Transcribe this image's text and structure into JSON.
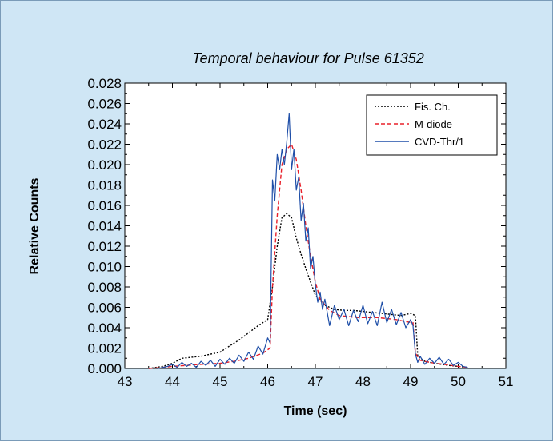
{
  "chart_data": {
    "type": "line",
    "title": "Temporal behaviour for Pulse 61352",
    "xlabel": "Time (sec)",
    "ylabel": "Relative Counts",
    "xlim": [
      43,
      51
    ],
    "ylim": [
      0,
      0.028
    ],
    "x_ticks": [
      "43",
      "44",
      "45",
      "46",
      "47",
      "48",
      "49",
      "50",
      "51"
    ],
    "y_ticks": [
      "0.000",
      "0.002",
      "0.004",
      "0.006",
      "0.008",
      "0.010",
      "0.012",
      "0.014",
      "0.016",
      "0.018",
      "0.020",
      "0.022",
      "0.024",
      "0.026",
      "0.028"
    ],
    "legend_position": "top-right",
    "grid": false,
    "series": [
      {
        "name": "Fis. Ch.",
        "color": "#000000",
        "style": "dotted",
        "x": [
          43.5,
          43.8,
          44.0,
          44.2,
          44.4,
          44.6,
          44.8,
          45.0,
          45.2,
          45.4,
          45.6,
          45.8,
          46.0,
          46.1,
          46.2,
          46.3,
          46.4,
          46.5,
          46.6,
          46.7,
          46.8,
          46.9,
          47.0,
          47.2,
          47.4,
          47.6,
          47.8,
          48.0,
          48.2,
          48.4,
          48.6,
          48.8,
          49.0,
          49.1,
          49.15,
          49.3,
          49.5,
          49.8,
          50.0,
          50.2
        ],
        "y": [
          0.0,
          0.0002,
          0.0005,
          0.001,
          0.0011,
          0.0012,
          0.0014,
          0.0016,
          0.0022,
          0.0028,
          0.0035,
          0.0042,
          0.0048,
          0.008,
          0.012,
          0.0148,
          0.0152,
          0.0148,
          0.0128,
          0.0112,
          0.0098,
          0.0085,
          0.0072,
          0.0062,
          0.0058,
          0.0057,
          0.0057,
          0.0056,
          0.0055,
          0.0054,
          0.0053,
          0.0052,
          0.0054,
          0.0052,
          0.0012,
          0.0007,
          0.0005,
          0.0003,
          0.0002,
          0.0001
        ]
      },
      {
        "name": "M-diode",
        "color": "#e8202a",
        "style": "dashed",
        "x": [
          43.5,
          43.8,
          44.0,
          44.3,
          44.6,
          45.0,
          45.3,
          45.6,
          45.9,
          46.05,
          46.1,
          46.2,
          46.3,
          46.4,
          46.5,
          46.6,
          46.7,
          46.8,
          46.9,
          47.0,
          47.1,
          47.3,
          47.5,
          47.7,
          47.9,
          48.1,
          48.3,
          48.5,
          48.7,
          48.9,
          49.05,
          49.1,
          49.2,
          49.4,
          49.7,
          50.0,
          50.2
        ],
        "y": [
          0.0,
          0.0001,
          0.0002,
          0.0003,
          0.0004,
          0.0005,
          0.0007,
          0.001,
          0.0015,
          0.002,
          0.008,
          0.015,
          0.02,
          0.0215,
          0.022,
          0.0205,
          0.0175,
          0.014,
          0.011,
          0.0085,
          0.0068,
          0.0057,
          0.0052,
          0.0051,
          0.005,
          0.005,
          0.005,
          0.0049,
          0.0048,
          0.0046,
          0.0045,
          0.0015,
          0.0008,
          0.0006,
          0.0004,
          0.0002,
          0.0001
        ]
      },
      {
        "name": "CVD-Thr/1",
        "color": "#1f4fa8",
        "style": "solid",
        "x": [
          43.7,
          43.9,
          44.0,
          44.1,
          44.2,
          44.3,
          44.4,
          44.5,
          44.6,
          44.7,
          44.8,
          44.9,
          45.0,
          45.1,
          45.2,
          45.3,
          45.4,
          45.5,
          45.6,
          45.7,
          45.8,
          45.9,
          46.0,
          46.05,
          46.1,
          46.15,
          46.2,
          46.25,
          46.3,
          46.35,
          46.4,
          46.45,
          46.5,
          46.55,
          46.6,
          46.65,
          46.7,
          46.75,
          46.8,
          46.85,
          46.9,
          46.95,
          47.0,
          47.05,
          47.1,
          47.15,
          47.2,
          47.3,
          47.4,
          47.5,
          47.6,
          47.7,
          47.8,
          47.9,
          48.0,
          48.1,
          48.2,
          48.3,
          48.4,
          48.5,
          48.6,
          48.7,
          48.8,
          48.9,
          49.0,
          49.05,
          49.1,
          49.15,
          49.2,
          49.3,
          49.4,
          49.5,
          49.6,
          49.7,
          49.8,
          49.9,
          50.0,
          50.1,
          50.2
        ],
        "y": [
          0.0,
          0.0002,
          0.0004,
          0.0001,
          0.0006,
          0.0002,
          0.0005,
          0.0001,
          0.0007,
          0.0003,
          0.0008,
          0.0002,
          0.0009,
          0.0004,
          0.001,
          0.0005,
          0.0013,
          0.0007,
          0.0016,
          0.0009,
          0.0022,
          0.0014,
          0.003,
          0.0025,
          0.0185,
          0.0165,
          0.021,
          0.0195,
          0.0215,
          0.02,
          0.0222,
          0.025,
          0.0195,
          0.0215,
          0.0175,
          0.0188,
          0.0145,
          0.0162,
          0.0125,
          0.0138,
          0.0098,
          0.011,
          0.0082,
          0.0065,
          0.0075,
          0.0058,
          0.0068,
          0.0042,
          0.0062,
          0.0048,
          0.0058,
          0.0042,
          0.0057,
          0.0046,
          0.0062,
          0.0044,
          0.0056,
          0.0042,
          0.0065,
          0.0045,
          0.0058,
          0.0043,
          0.0055,
          0.004,
          0.0048,
          0.0042,
          0.0014,
          0.0006,
          0.0012,
          0.0004,
          0.001,
          0.0005,
          0.0011,
          0.0004,
          0.0009,
          0.0003,
          0.0006,
          0.0002,
          0.0001
        ]
      }
    ]
  }
}
